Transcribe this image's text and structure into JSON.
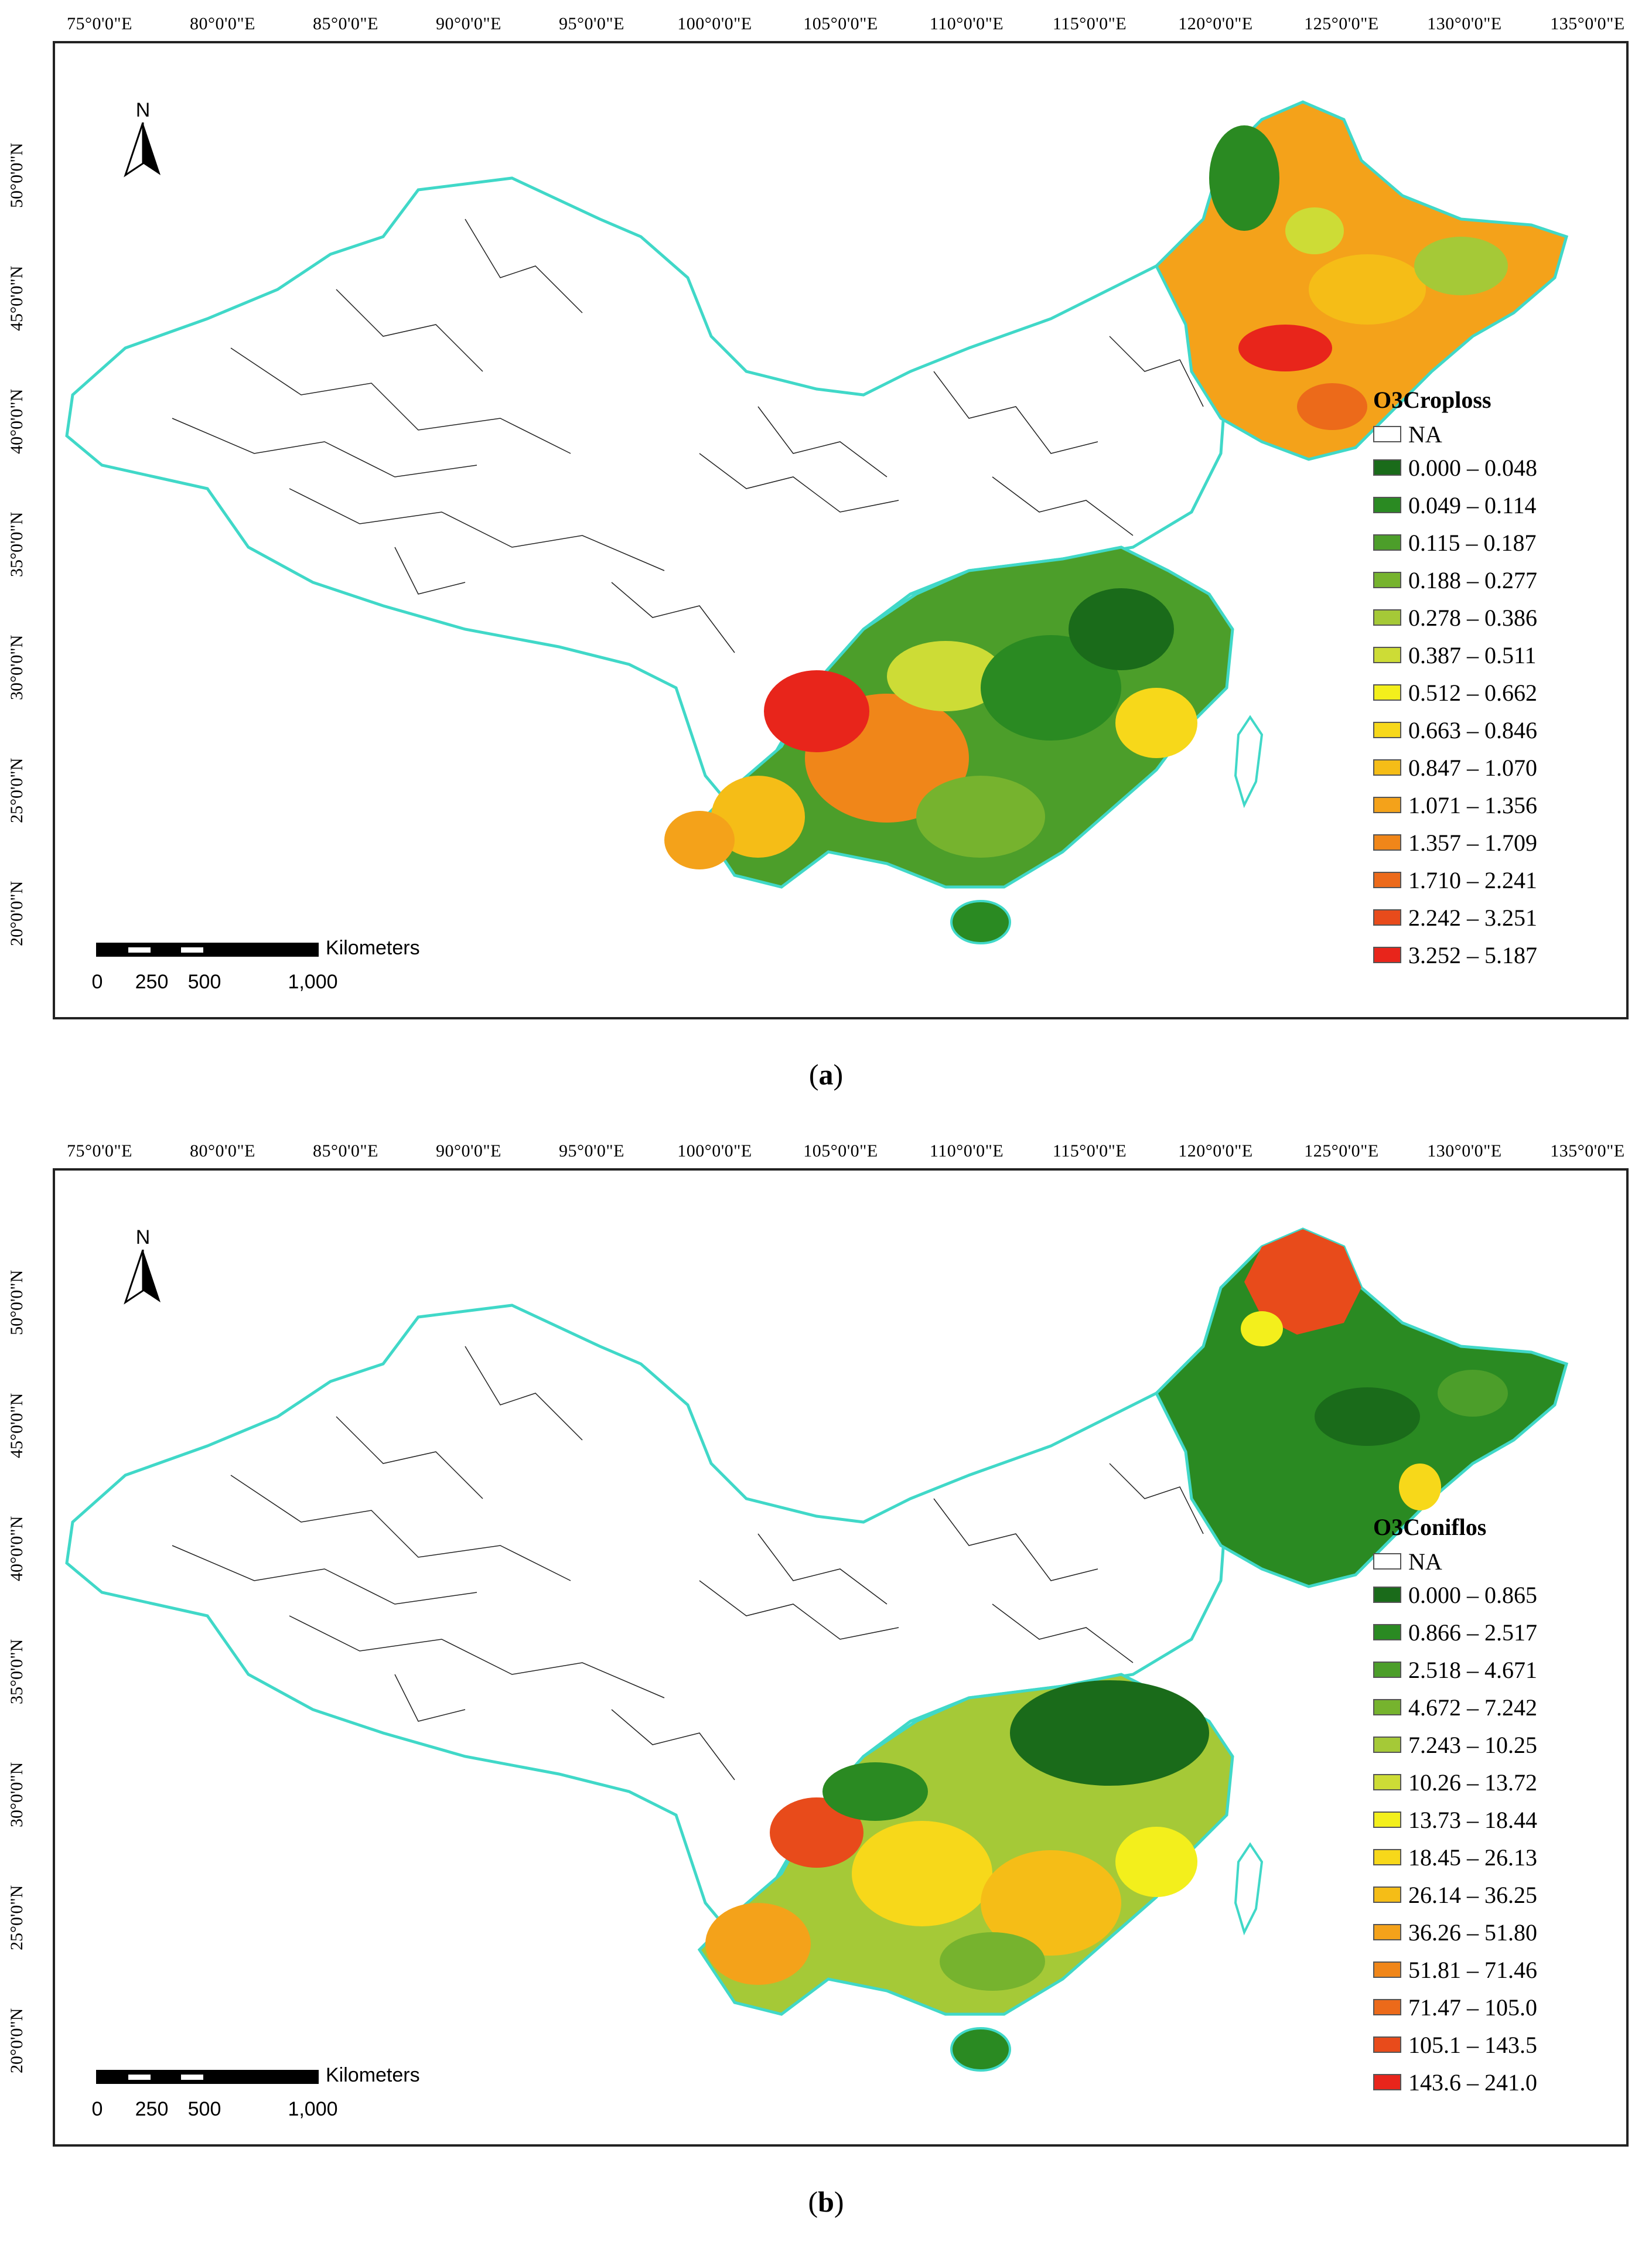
{
  "longitude_ticks": [
    "75°0'0\"E",
    "80°0'0\"E",
    "85°0'0\"E",
    "90°0'0\"E",
    "95°0'0\"E",
    "100°0'0\"E",
    "105°0'0\"E",
    "110°0'0\"E",
    "115°0'0\"E",
    "120°0'0\"E",
    "125°0'0\"E",
    "130°0'0\"E",
    "135°0'0\"E"
  ],
  "latitude_ticks": [
    "50°0'0\"N",
    "45°0'0\"N",
    "40°0'0\"N",
    "35°0'0\"N",
    "30°0'0\"N",
    "25°0'0\"N",
    "20°0'0\"N"
  ],
  "north_label": "N",
  "scale": {
    "units": "Kilometers",
    "labels": [
      "0",
      "250",
      "500",
      "1,000"
    ]
  },
  "na_label": "NA",
  "panels": [
    {
      "title": "O3Croploss",
      "caption_open": "(",
      "caption_letter": "a",
      "caption_close": ")",
      "classes": [
        "0.000 – 0.048",
        "0.049 – 0.114",
        "0.115 – 0.187",
        "0.188 – 0.277",
        "0.278 – 0.386",
        "0.387 – 0.511",
        "0.512 – 0.662",
        "0.663 – 0.846",
        "0.847 – 1.070",
        "1.071 – 1.356",
        "1.357 – 1.709",
        "1.710 – 2.241",
        "2.242 – 3.251",
        "3.252 – 5.187"
      ]
    },
    {
      "title": "O3Coniflos",
      "caption_open": "(",
      "caption_letter": "b",
      "caption_close": ")",
      "classes": [
        "0.000 – 0.865",
        "0.866 – 2.517",
        "2.518 – 4.671",
        "4.672 – 7.242",
        "7.243 – 10.25",
        "10.26 – 13.72",
        "13.73 – 18.44",
        "18.45 – 26.13",
        "26.14 – 36.25",
        "36.26 – 51.80",
        "51.81 – 71.46",
        "71.47 – 105.0",
        "105.1 – 143.5",
        "143.6 – 241.0"
      ]
    }
  ],
  "palette": [
    "#1a6b1a",
    "#2a8a22",
    "#4c9e2a",
    "#76b32e",
    "#a5c937",
    "#cddc36",
    "#f3ef1c",
    "#f7d81a",
    "#f5bd17",
    "#f4a21a",
    "#f08619",
    "#ec6a1a",
    "#e84b1b",
    "#e8251b"
  ],
  "boundary_color": "#40d8c8",
  "na_fill": "#ffffff"
}
